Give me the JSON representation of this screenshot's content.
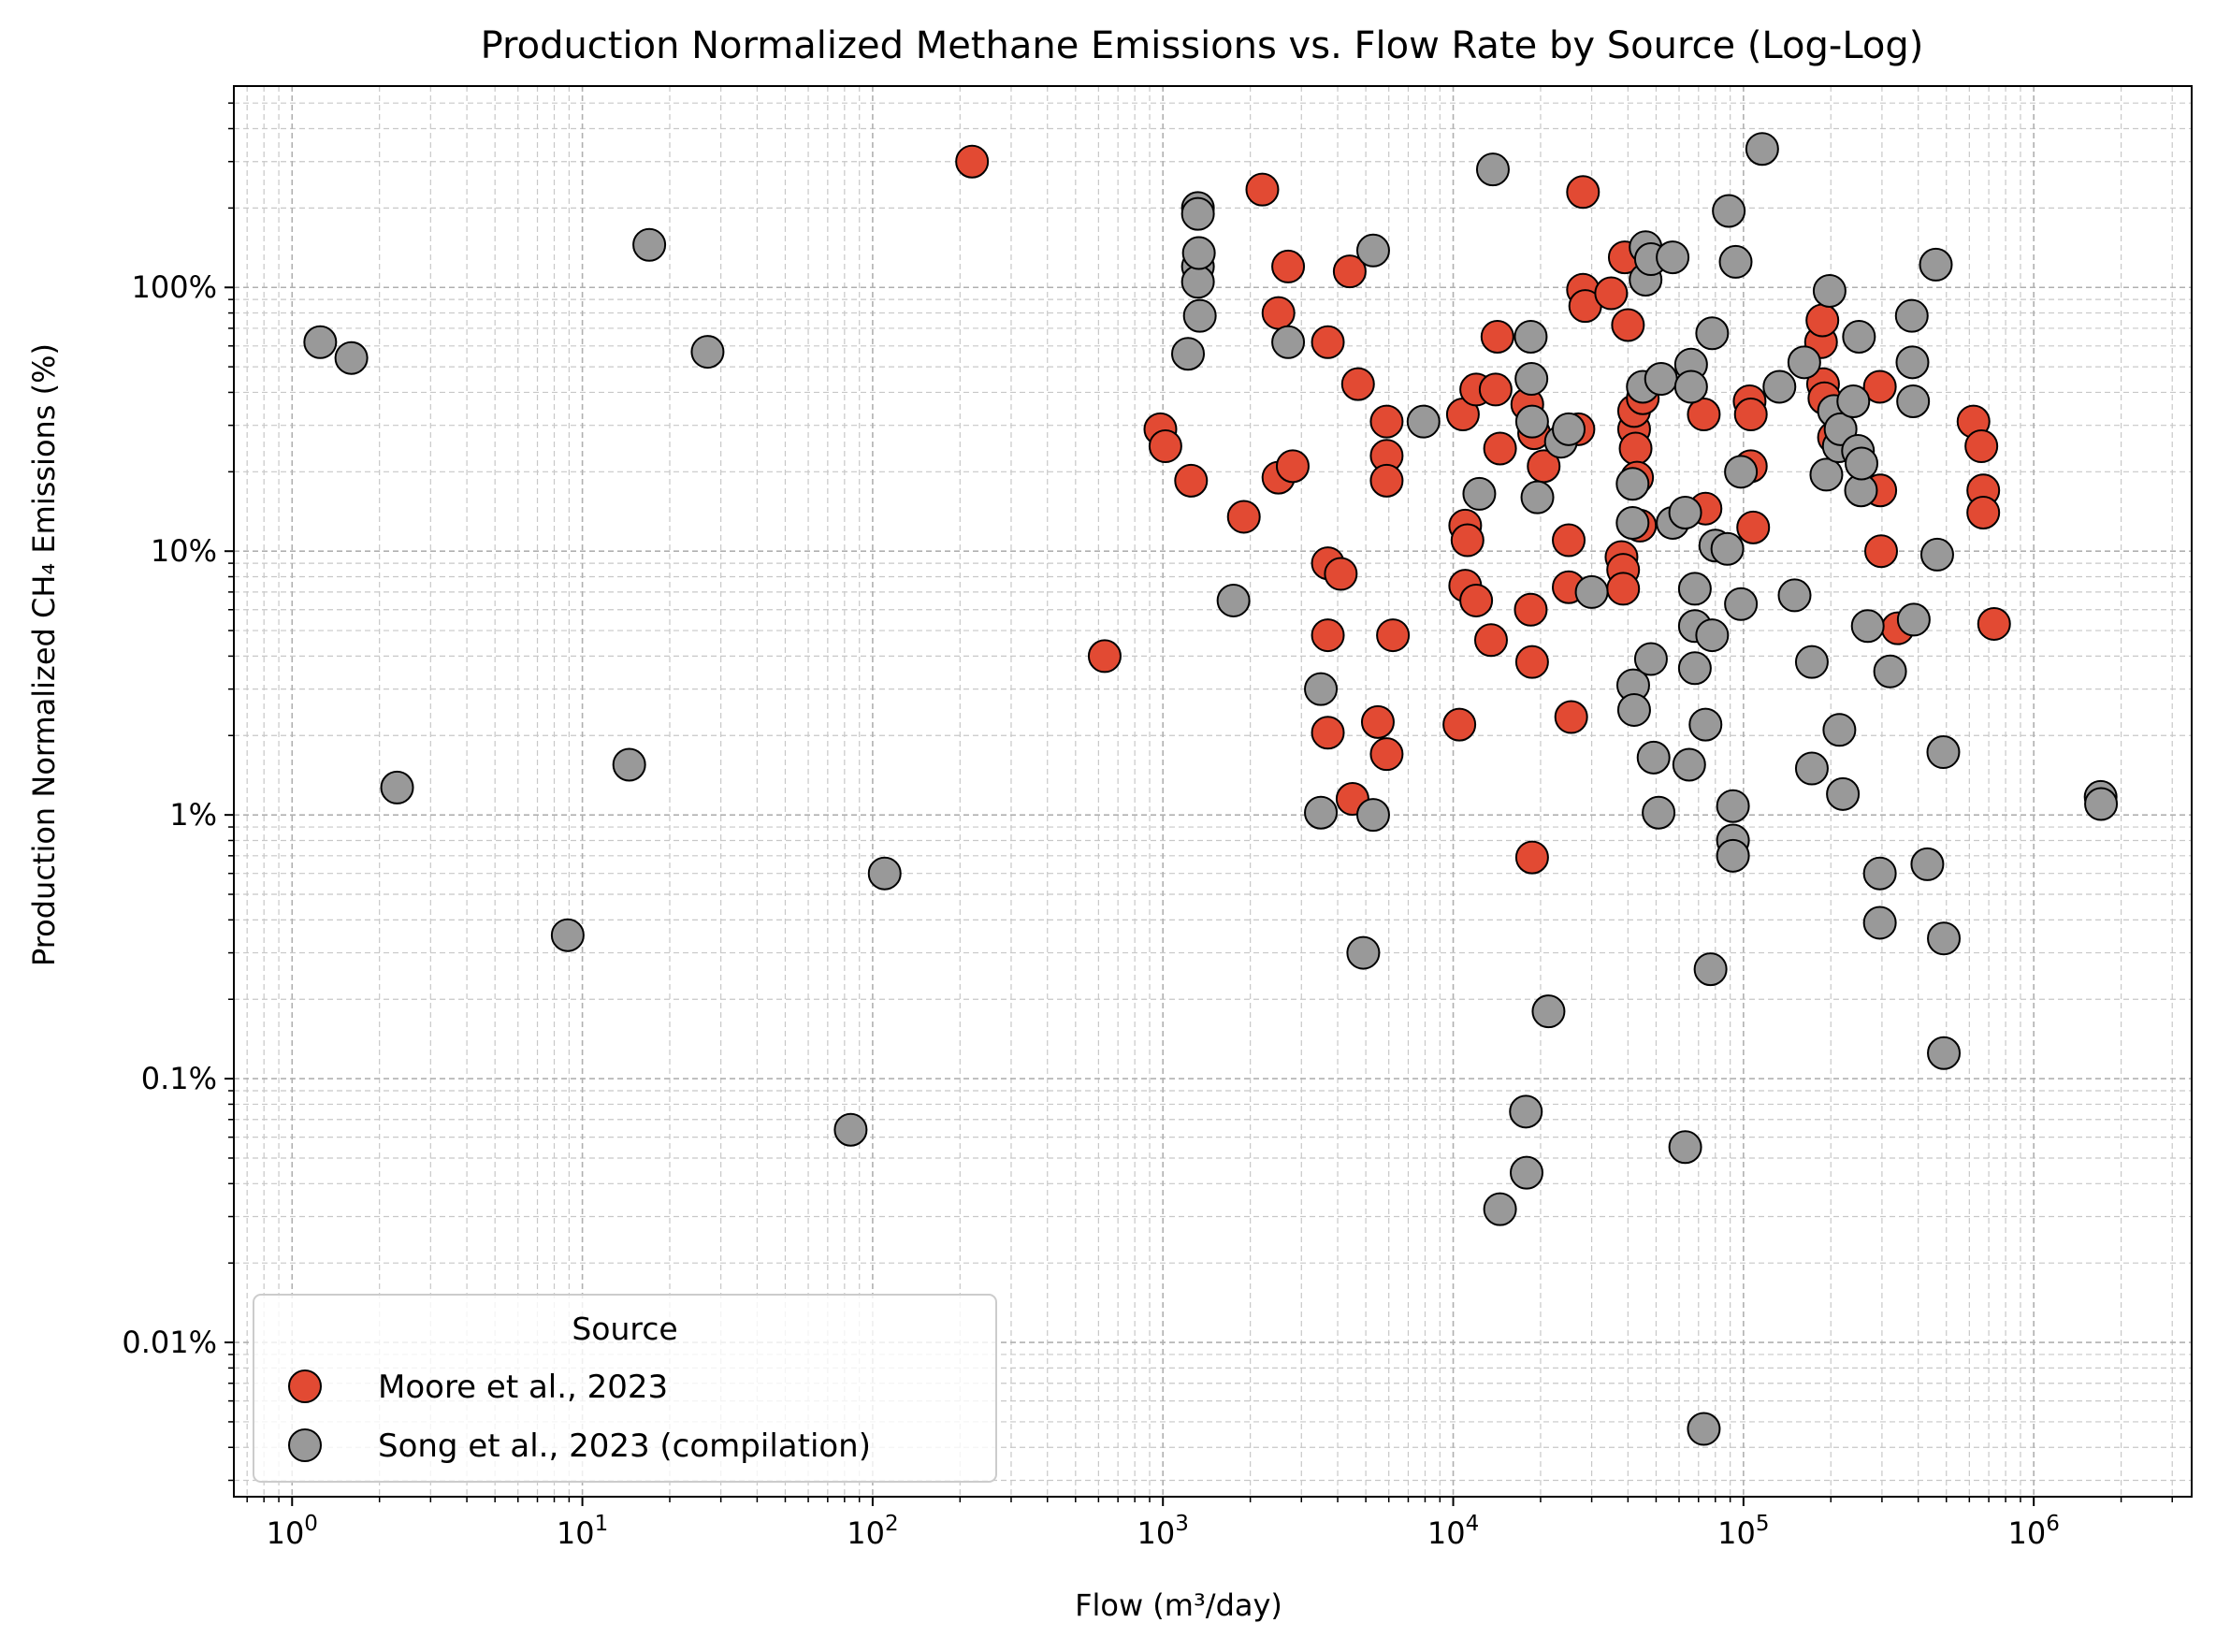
{
  "chart_data": {
    "type": "scatter",
    "title": "Production Normalized Methane Emissions vs. Flow Rate by Source (Log-Log)",
    "xlabel": "Flow (m³/day)",
    "ylabel": "Production Normalized CH₄ Emissions (%)",
    "xscale": "log",
    "yscale": "log",
    "xlim": [
      0.63,
      3500000
    ],
    "ylim": [
      0.0026,
      580
    ],
    "grid": true,
    "grid_style": "dashed, major and minor",
    "legend_position": "lower-left",
    "legend_title": "Source",
    "x_ticks": [
      {
        "value": 1,
        "base": "10",
        "exp": "0"
      },
      {
        "value": 10,
        "base": "10",
        "exp": "1"
      },
      {
        "value": 100,
        "base": "10",
        "exp": "2"
      },
      {
        "value": 1000,
        "base": "10",
        "exp": "3"
      },
      {
        "value": 10000,
        "base": "10",
        "exp": "4"
      },
      {
        "value": 100000,
        "base": "10",
        "exp": "5"
      },
      {
        "value": 1000000,
        "base": "10",
        "exp": "6"
      }
    ],
    "y_ticks": [
      {
        "value": 0.01,
        "label": "0.01%"
      },
      {
        "value": 0.1,
        "label": "0.1%"
      },
      {
        "value": 1,
        "label": "1%"
      },
      {
        "value": 10,
        "label": "10%"
      },
      {
        "value": 100,
        "label": "100%"
      }
    ],
    "series": [
      {
        "name": "Moore et al., 2023",
        "color": "#e24a33",
        "points": [
          [
            220,
            300
          ],
          [
            630,
            4
          ],
          [
            980,
            29
          ],
          [
            1020,
            25
          ],
          [
            1250,
            18.5
          ],
          [
            1900,
            13.5
          ],
          [
            2200,
            235
          ],
          [
            2500,
            80
          ],
          [
            2500,
            19
          ],
          [
            2700,
            120
          ],
          [
            2800,
            21
          ],
          [
            3700,
            62
          ],
          [
            3700,
            9
          ],
          [
            3700,
            4.8
          ],
          [
            3700,
            2.05
          ],
          [
            4100,
            8.2
          ],
          [
            4400,
            115
          ],
          [
            4500,
            1.15
          ],
          [
            4700,
            43
          ],
          [
            5500,
            2.25
          ],
          [
            5900,
            31
          ],
          [
            5900,
            23
          ],
          [
            5900,
            18.5
          ],
          [
            5900,
            1.7
          ],
          [
            6200,
            4.8
          ],
          [
            10500,
            2.2
          ],
          [
            10800,
            33
          ],
          [
            11000,
            12.5
          ],
          [
            11000,
            7.4
          ],
          [
            11200,
            11
          ],
          [
            12000,
            41
          ],
          [
            12000,
            6.5
          ],
          [
            13500,
            4.6
          ],
          [
            14000,
            41
          ],
          [
            14200,
            65
          ],
          [
            14500,
            24.5
          ],
          [
            18000,
            36
          ],
          [
            18500,
            6
          ],
          [
            18700,
            3.8
          ],
          [
            18700,
            0.69
          ],
          [
            19000,
            28
          ],
          [
            20500,
            21
          ],
          [
            25000,
            11
          ],
          [
            25000,
            7.3
          ],
          [
            25500,
            2.35
          ],
          [
            27000,
            29
          ],
          [
            28000,
            230
          ],
          [
            28000,
            98
          ],
          [
            28500,
            85
          ],
          [
            35000,
            95
          ],
          [
            38000,
            9.5
          ],
          [
            38500,
            8.5
          ],
          [
            38500,
            7.2
          ],
          [
            39000,
            130
          ],
          [
            40000,
            72
          ],
          [
            42000,
            29
          ],
          [
            42000,
            34
          ],
          [
            42500,
            24.5
          ],
          [
            43000,
            19
          ],
          [
            44000,
            12.5
          ],
          [
            45000,
            38
          ],
          [
            73000,
            33
          ],
          [
            74000,
            14.5
          ],
          [
            105000,
            37
          ],
          [
            106000,
            33
          ],
          [
            106000,
            21
          ],
          [
            108000,
            12.3
          ],
          [
            185000,
            62
          ],
          [
            187000,
            75
          ],
          [
            188000,
            43
          ],
          [
            190000,
            38
          ],
          [
            205000,
            27
          ],
          [
            295000,
            42
          ],
          [
            296000,
            17
          ],
          [
            298000,
            10
          ],
          [
            340000,
            5.1
          ],
          [
            620000,
            31
          ],
          [
            660000,
            25
          ],
          [
            670000,
            17
          ],
          [
            670000,
            14
          ],
          [
            730000,
            5.3
          ]
        ]
      },
      {
        "name": "Song et al., 2023 (compilation)",
        "color": "#999999",
        "points": [
          [
            1.25,
            62
          ],
          [
            1.6,
            54
          ],
          [
            2.3,
            1.27
          ],
          [
            8.9,
            0.35
          ],
          [
            14.5,
            1.55
          ],
          [
            17,
            145
          ],
          [
            27,
            57
          ],
          [
            84,
            0.064
          ],
          [
            110,
            0.6
          ],
          [
            1220,
            56
          ],
          [
            1320,
            200
          ],
          [
            1320,
            190
          ],
          [
            1320,
            120
          ],
          [
            1320,
            105
          ],
          [
            1330,
            135
          ],
          [
            1340,
            78
          ],
          [
            1750,
            6.5
          ],
          [
            2700,
            62
          ],
          [
            3500,
            3
          ],
          [
            3500,
            1.02
          ],
          [
            4900,
            0.3
          ],
          [
            5300,
            1.0
          ],
          [
            5300,
            138
          ],
          [
            7900,
            31
          ],
          [
            12300,
            16.5
          ],
          [
            13700,
            280
          ],
          [
            14500,
            0.032
          ],
          [
            17800,
            0.075
          ],
          [
            17900,
            0.044
          ],
          [
            18500,
            65
          ],
          [
            18600,
            45
          ],
          [
            18700,
            31
          ],
          [
            19500,
            16
          ],
          [
            21300,
            0.18
          ],
          [
            23500,
            26
          ],
          [
            25000,
            29
          ],
          [
            30000,
            7
          ],
          [
            41500,
            18
          ],
          [
            41500,
            12.8
          ],
          [
            41700,
            3.1
          ],
          [
            42000,
            2.5
          ],
          [
            45000,
            42
          ],
          [
            46000,
            142
          ],
          [
            46000,
            107
          ],
          [
            48000,
            128
          ],
          [
            48000,
            3.9
          ],
          [
            49000,
            1.65
          ],
          [
            51000,
            1.02
          ],
          [
            52000,
            45
          ],
          [
            57000,
            130
          ],
          [
            57000,
            12.8
          ],
          [
            63000,
            0.055
          ],
          [
            63000,
            14
          ],
          [
            65000,
            1.55
          ],
          [
            66000,
            51
          ],
          [
            66000,
            42
          ],
          [
            68000,
            7.2
          ],
          [
            68000,
            5.2
          ],
          [
            68000,
            3.6
          ],
          [
            73000,
            0.0047
          ],
          [
            74000,
            2.2
          ],
          [
            77000,
            0.26
          ],
          [
            78000,
            67
          ],
          [
            78000,
            4.8
          ],
          [
            80000,
            10.5
          ],
          [
            88000,
            10.2
          ],
          [
            89000,
            195
          ],
          [
            92000,
            1.08
          ],
          [
            92000,
            0.8
          ],
          [
            92000,
            0.7
          ],
          [
            94000,
            125
          ],
          [
            98000,
            20
          ],
          [
            98000,
            6.3
          ],
          [
            116000,
            335
          ],
          [
            133000,
            42
          ],
          [
            150000,
            6.8
          ],
          [
            162000,
            52
          ],
          [
            172000,
            3.8
          ],
          [
            172000,
            1.5
          ],
          [
            193000,
            19.5
          ],
          [
            198000,
            97
          ],
          [
            205000,
            34
          ],
          [
            213000,
            25
          ],
          [
            214000,
            2.1
          ],
          [
            216000,
            29
          ],
          [
            220000,
            1.2
          ],
          [
            239000,
            37
          ],
          [
            248000,
            24
          ],
          [
            250000,
            65
          ],
          [
            254000,
            17
          ],
          [
            255000,
            21.5
          ],
          [
            268000,
            5.2
          ],
          [
            295000,
            0.6
          ],
          [
            295000,
            0.39
          ],
          [
            320000,
            3.5
          ],
          [
            380000,
            78
          ],
          [
            382000,
            52
          ],
          [
            384000,
            37
          ],
          [
            386000,
            5.5
          ],
          [
            430000,
            0.65
          ],
          [
            460000,
            122
          ],
          [
            465000,
            9.7
          ],
          [
            488000,
            1.73
          ],
          [
            490000,
            0.34
          ],
          [
            490000,
            0.125
          ],
          [
            1700000,
            1.17
          ],
          [
            1705000,
            1.1
          ]
        ]
      }
    ]
  }
}
